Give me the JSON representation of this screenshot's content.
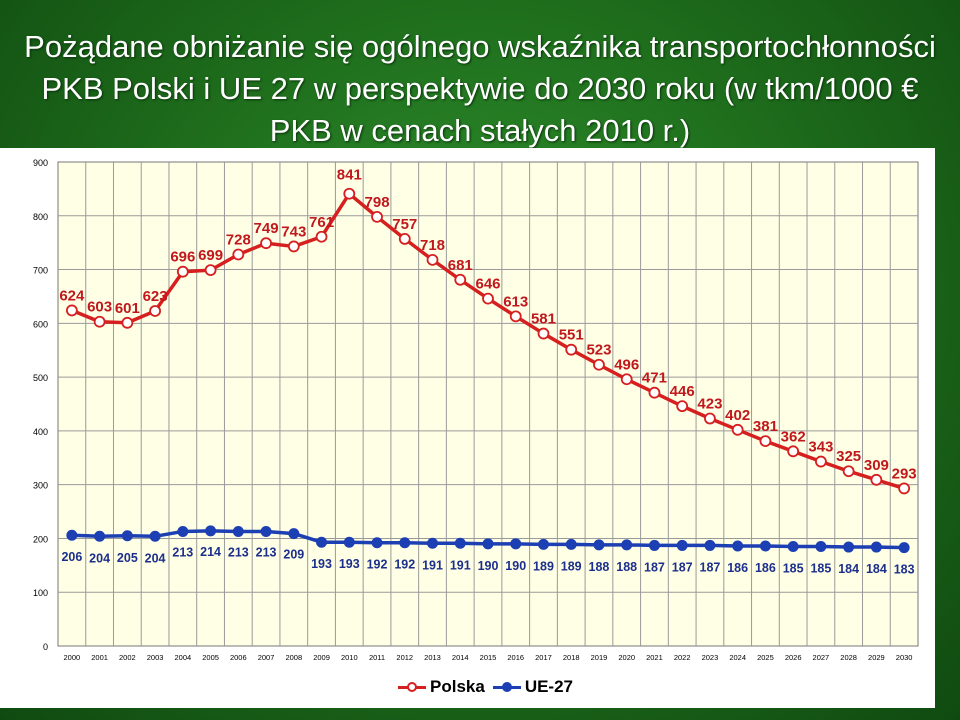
{
  "title": "Pożądane obniżanie się ogólnego wskaźnika transportochłonności PKB Polski i UE 27 w perspektywie do 2030 roku (w tkm/1000 € PKB w cenach stałych 2010 r.)",
  "chart_data": {
    "type": "line",
    "title": "Pożądane obniżanie się ogólnego wskaźnika transportochłonności PKB Polski i UE 27 w perspektywie do 2030 roku (w tkm/1000 € PKB w cenach stałych 2010 r.)",
    "xlabel": "",
    "ylabel": "",
    "ylim": [
      0,
      900
    ],
    "yticks": [
      0,
      100,
      200,
      300,
      400,
      500,
      600,
      700,
      800,
      900
    ],
    "grid": true,
    "legend_position": "bottom",
    "categories": [
      "2000",
      "2001",
      "2002",
      "2003",
      "2004",
      "2005",
      "2006",
      "2007",
      "2008",
      "2009",
      "2010",
      "2011",
      "2012",
      "2013",
      "2014",
      "2015",
      "2016",
      "2017",
      "2018",
      "2019",
      "2020",
      "2021",
      "2022",
      "2023",
      "2024",
      "2025",
      "2026",
      "2027",
      "2028",
      "2029",
      "2030"
    ],
    "series": [
      {
        "name": "Polska",
        "color": "#d61f1f",
        "values": [
          624,
          603,
          601,
          623,
          696,
          699,
          728,
          749,
          743,
          761,
          841,
          798,
          757,
          718,
          681,
          646,
          613,
          581,
          551,
          523,
          496,
          471,
          446,
          423,
          402,
          381,
          362,
          343,
          325,
          309,
          293
        ]
      },
      {
        "name": "UE-27",
        "color": "#1c3fb3",
        "values": [
          206,
          204,
          205,
          204,
          213,
          214,
          213,
          213,
          209,
          193,
          193,
          192,
          192,
          191,
          191,
          190,
          190,
          189,
          189,
          188,
          188,
          187,
          187,
          187,
          186,
          186,
          185,
          185,
          184,
          184,
          183
        ]
      }
    ]
  }
}
